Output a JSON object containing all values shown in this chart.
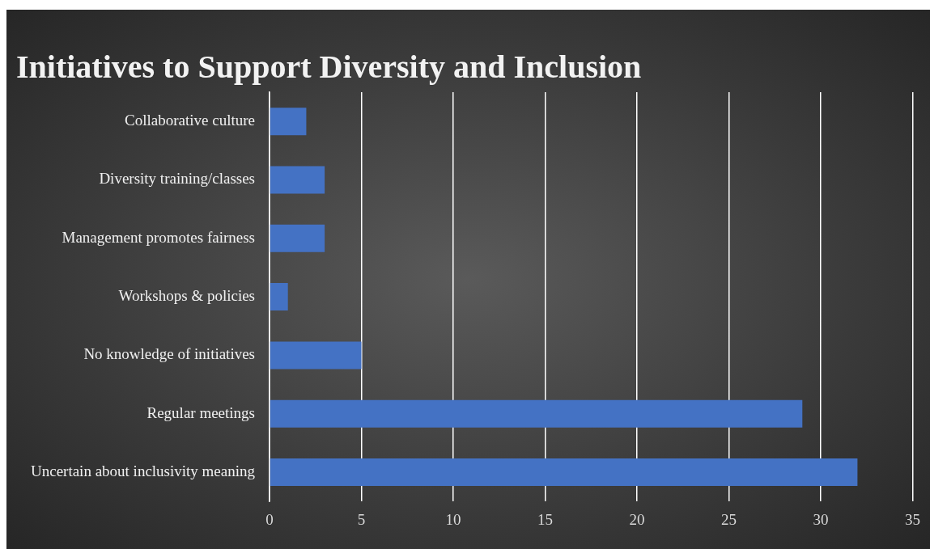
{
  "chart_data": {
    "type": "bar",
    "orientation": "horizontal",
    "title": "Initiatives to Support Diversity and Inclusion",
    "categories": [
      "Collaborative culture",
      "Diversity training/classes",
      "Management promotes fairness",
      "Workshops & policies",
      "No knowledge of initiatives",
      "Regular meetings",
      "Uncertain about inclusivity meaning"
    ],
    "values": [
      2,
      3,
      3,
      1,
      5,
      29,
      32
    ],
    "color": "#4472c4",
    "xlim": [
      0,
      35
    ],
    "xticks": [
      0,
      5,
      10,
      15,
      20,
      25,
      30,
      35
    ],
    "grid": "x"
  }
}
